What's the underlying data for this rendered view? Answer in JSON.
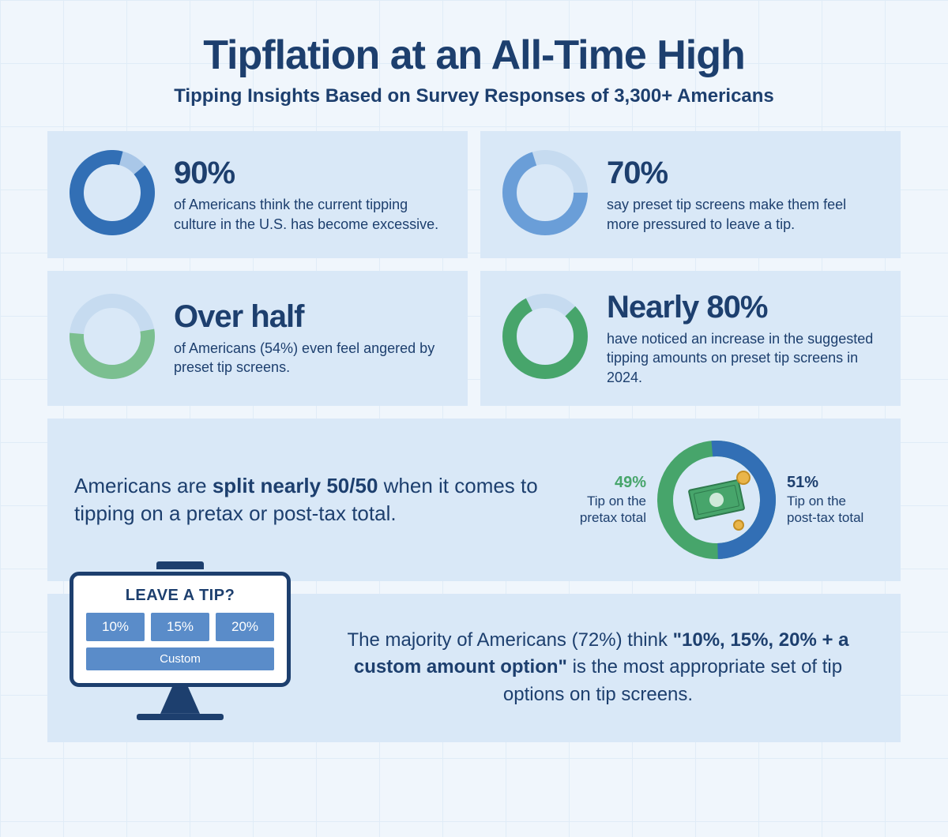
{
  "colors": {
    "navy": "#1d3f6e",
    "blue": "#326fb5",
    "lightblue": "#a9c7e8",
    "green": "#47a56b",
    "cardbg": "#d9e8f7",
    "pagebg": "#f0f6fc",
    "gridline": "#e0ecf7"
  },
  "header": {
    "title": "Tipflation at an All-Time High",
    "subtitle": "Tipping Insights Based on Survey Responses of 3,300+ Americans"
  },
  "cards": [
    {
      "stat": "90%",
      "desc": "of Americans think the current tipping culture in the U.S. has become excessive.",
      "donut": {
        "pct": 90,
        "fg": "#326fb5",
        "bg": "#a9c7e8",
        "start": 50,
        "dir": 1
      }
    },
    {
      "stat": "70%",
      "desc": "say preset tip screens make them feel more pressured to leave a tip.",
      "donut": {
        "pct": 70,
        "fg": "#6a9ed8",
        "bg": "#c6dbf0",
        "start": 90,
        "dir": 1
      }
    },
    {
      "stat": "Over half",
      "desc": "of Americans (54%) even feel angered by preset tip screens.",
      "donut": {
        "pct": 54,
        "fg": "#7bbf90",
        "bg": "#c6dbf0",
        "start": 80,
        "dir": 1
      }
    },
    {
      "stat": "Nearly 80%",
      "desc": "have noticed an increase in the suggested tipping amounts on preset tip screens in 2024.",
      "donut": {
        "pct": 80,
        "fg": "#47a56b",
        "bg": "#c6dbf0",
        "start": 45,
        "dir": 1
      }
    }
  ],
  "split": {
    "text_pre": "Americans are ",
    "text_bold": "split nearly 50/50",
    "text_post": " when it comes to tipping on a pretax or post-tax total.",
    "left": {
      "pct": "49%",
      "label": "Tip on the pretax total"
    },
    "right": {
      "pct": "51%",
      "label": "Tip on the post-tax total"
    },
    "donut": {
      "pctA": 51,
      "colorA": "#326fb5",
      "colorB": "#47a56b",
      "start": -5
    }
  },
  "monitor": {
    "title": "LEAVE A TIP?",
    "options": [
      "10%",
      "15%",
      "20%"
    ],
    "custom": "Custom"
  },
  "bottom": {
    "pre": "The majority of Americans (72%) think ",
    "bold": "\"10%, 15%, 20% + a custom amount option\"",
    "post": " is the most appropriate set of tip options on tip screens."
  },
  "donut_style": {
    "size": 108,
    "stroke": 18,
    "split_size": 150,
    "split_stroke": 20
  }
}
